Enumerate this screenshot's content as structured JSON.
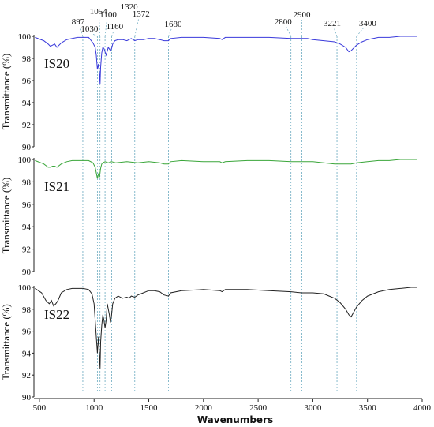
{
  "chart_data": {
    "type": "line",
    "xlabel": "Wavenumbers",
    "xlim": [
      450,
      4000
    ],
    "x_ticks": [
      "500",
      "1000",
      "1500",
      "2000",
      "2500",
      "3000",
      "3500",
      "4000"
    ],
    "reference_lines": [
      {
        "x": 897,
        "label": "897"
      },
      {
        "x": 1030,
        "label": "1030"
      },
      {
        "x": 1054,
        "label": "1054"
      },
      {
        "x": 1100,
        "label": "1100"
      },
      {
        "x": 1160,
        "label": "1160"
      },
      {
        "x": 1320,
        "label": "1320"
      },
      {
        "x": 1372,
        "label": "1372"
      },
      {
        "x": 1680,
        "label": "1680"
      },
      {
        "x": 2800,
        "label": "2800"
      },
      {
        "x": 2900,
        "label": "2900"
      },
      {
        "x": 3221,
        "label": "3221"
      },
      {
        "x": 3400,
        "label": "3400"
      }
    ],
    "panels": [
      {
        "label": "IS20",
        "ylabel": "Transmittance (%)",
        "ylim": [
          90,
          100
        ],
        "y_ticks": [
          "100",
          "98",
          "96",
          "94",
          "92",
          "90"
        ],
        "color": "#3a3adb",
        "series": {
          "x": [
            460,
            540,
            580,
            600,
            620,
            640,
            660,
            700,
            750,
            800,
            850,
            900,
            950,
            990,
            1010,
            1020,
            1030,
            1040,
            1050,
            1055,
            1060,
            1070,
            1080,
            1090,
            1100,
            1110,
            1130,
            1150,
            1160,
            1170,
            1190,
            1220,
            1260,
            1300,
            1320,
            1340,
            1372,
            1400,
            1450,
            1500,
            1550,
            1600,
            1640,
            1680,
            1700,
            1800,
            2000,
            2150,
            2170,
            2200,
            2400,
            2600,
            2800,
            2900,
            2950,
            3000,
            3100,
            3200,
            3250,
            3300,
            3330,
            3350,
            3400,
            3450,
            3500,
            3600,
            3700,
            3800,
            3900,
            3950
          ],
          "y": [
            99.9,
            99.6,
            99.3,
            99.1,
            99.2,
            99.3,
            99.0,
            99.4,
            99.7,
            99.8,
            99.9,
            99.9,
            99.9,
            99.4,
            99.0,
            98.3,
            97.0,
            97.5,
            96.5,
            95.7,
            97.2,
            98.5,
            99.0,
            98.9,
            98.6,
            98.3,
            99.0,
            98.7,
            98.9,
            99.3,
            99.6,
            99.7,
            99.7,
            99.6,
            99.7,
            99.8,
            99.6,
            99.7,
            99.7,
            99.8,
            99.8,
            99.7,
            99.6,
            99.6,
            99.8,
            99.9,
            99.9,
            99.8,
            99.7,
            99.9,
            99.9,
            99.9,
            99.8,
            99.8,
            99.8,
            99.7,
            99.6,
            99.5,
            99.3,
            99.0,
            98.6,
            98.7,
            99.2,
            99.5,
            99.7,
            99.9,
            99.9,
            100.0,
            100.0,
            100.0
          ]
        }
      },
      {
        "label": "IS21",
        "ylabel": "Transmittance (%)",
        "ylim": [
          90,
          100
        ],
        "y_ticks": [
          "100",
          "98",
          "96",
          "94",
          "92",
          "90"
        ],
        "color": "#3aa63a",
        "series": {
          "x": [
            460,
            540,
            580,
            600,
            620,
            640,
            660,
            700,
            750,
            800,
            850,
            900,
            950,
            990,
            1010,
            1020,
            1030,
            1040,
            1050,
            1060,
            1070,
            1080,
            1100,
            1130,
            1160,
            1200,
            1300,
            1400,
            1500,
            1600,
            1640,
            1680,
            1700,
            1800,
            2000,
            2150,
            2170,
            2200,
            2400,
            2600,
            2800,
            2900,
            3000,
            3100,
            3200,
            3300,
            3350,
            3400,
            3500,
            3600,
            3700,
            3800,
            3900,
            3950
          ],
          "y": [
            99.9,
            99.6,
            99.3,
            99.3,
            99.4,
            99.4,
            99.3,
            99.6,
            99.8,
            99.9,
            99.9,
            99.9,
            99.9,
            99.7,
            99.3,
            98.8,
            98.3,
            98.7,
            98.5,
            99.2,
            99.6,
            99.7,
            99.8,
            99.7,
            99.8,
            99.7,
            99.8,
            99.7,
            99.8,
            99.7,
            99.6,
            99.6,
            99.8,
            99.9,
            99.8,
            99.8,
            99.7,
            99.8,
            99.9,
            99.9,
            99.8,
            99.8,
            99.8,
            99.7,
            99.6,
            99.6,
            99.6,
            99.7,
            99.8,
            99.9,
            99.9,
            100.0,
            100.0,
            100.0
          ]
        }
      },
      {
        "label": "IS22",
        "ylabel": "Transmittance (%)",
        "ylim": [
          90,
          100
        ],
        "y_ticks": [
          "100",
          "98",
          "96",
          "94",
          "92",
          "90"
        ],
        "color": "#222222",
        "series": {
          "x": [
            460,
            520,
            560,
            590,
            610,
            630,
            650,
            670,
            700,
            750,
            800,
            850,
            900,
            950,
            980,
            1000,
            1010,
            1020,
            1030,
            1040,
            1050,
            1055,
            1060,
            1070,
            1080,
            1090,
            1100,
            1110,
            1120,
            1140,
            1150,
            1160,
            1170,
            1190,
            1220,
            1260,
            1300,
            1320,
            1340,
            1372,
            1400,
            1450,
            1500,
            1550,
            1600,
            1640,
            1680,
            1700,
            1800,
            2000,
            2150,
            2170,
            2200,
            2400,
            2600,
            2800,
            2900,
            3000,
            3100,
            3150,
            3200,
            3250,
            3300,
            3330,
            3350,
            3400,
            3450,
            3500,
            3600,
            3700,
            3800,
            3900,
            3950
          ],
          "y": [
            99.9,
            99.5,
            98.8,
            98.5,
            98.8,
            98.3,
            98.5,
            98.8,
            99.5,
            99.8,
            99.9,
            99.9,
            99.9,
            99.8,
            99.4,
            98.5,
            97.0,
            95.5,
            94.0,
            95.5,
            93.5,
            92.6,
            95.0,
            96.5,
            97.5,
            97.0,
            96.3,
            97.0,
            98.5,
            97.5,
            96.8,
            97.5,
            98.5,
            99.0,
            99.2,
            99.0,
            99.1,
            99.0,
            99.2,
            99.1,
            99.3,
            99.5,
            99.7,
            99.7,
            99.6,
            99.3,
            99.2,
            99.5,
            99.7,
            99.8,
            99.7,
            99.6,
            99.8,
            99.8,
            99.7,
            99.6,
            99.5,
            99.5,
            99.4,
            99.2,
            99.0,
            98.6,
            98.0,
            97.5,
            97.3,
            98.2,
            98.8,
            99.2,
            99.6,
            99.8,
            99.9,
            100.0,
            100.0
          ]
        }
      }
    ]
  }
}
